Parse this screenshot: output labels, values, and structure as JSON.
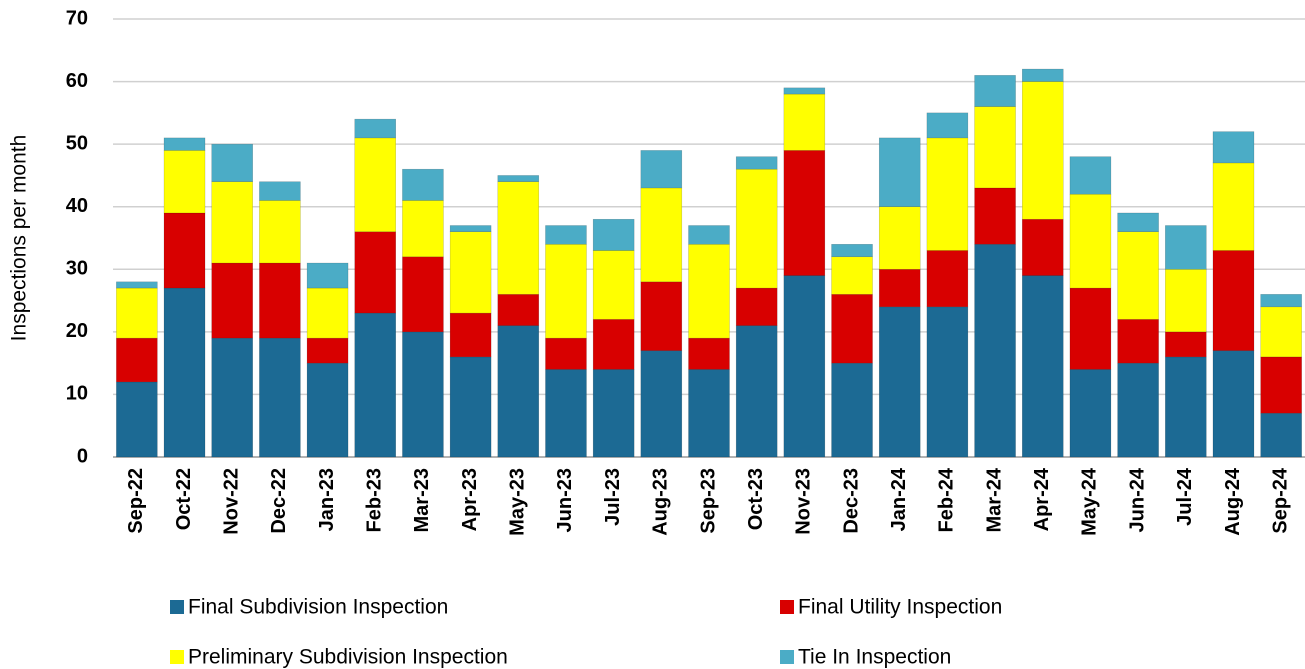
{
  "chart_data": {
    "type": "stacked_bar",
    "y_label": "Inspections per month",
    "categories": [
      "Sep-22",
      "Oct-22",
      "Nov-22",
      "Dec-22",
      "Jan-23",
      "Feb-23",
      "Mar-23",
      "Apr-23",
      "May-23",
      "Jun-23",
      "Jul-23",
      "Aug-23",
      "Sep-23",
      "Oct-23",
      "Nov-23",
      "Dec-23",
      "Jan-24",
      "Feb-24",
      "Mar-24",
      "Apr-24",
      "May-24",
      "Jun-24",
      "Jul-24",
      "Aug-24",
      "Sep-24"
    ],
    "series": [
      {
        "name": "Final Subdivision Inspection",
        "color": "#1c6a94",
        "values": [
          12,
          27,
          19,
          19,
          15,
          23,
          20,
          16,
          21,
          14,
          14,
          17,
          14,
          21,
          29,
          15,
          24,
          24,
          34,
          29,
          14,
          15,
          16,
          17,
          7
        ]
      },
      {
        "name": "Final Utility Inspection",
        "color": "#d80000",
        "values": [
          7,
          12,
          12,
          12,
          4,
          13,
          12,
          7,
          5,
          5,
          8,
          11,
          5,
          6,
          20,
          11,
          6,
          9,
          9,
          9,
          13,
          7,
          4,
          16,
          9
        ]
      },
      {
        "name": "Preliminary Subdivision Inspection",
        "color": "#ffff00",
        "values": [
          8,
          10,
          13,
          10,
          8,
          15,
          9,
          13,
          18,
          15,
          11,
          15,
          15,
          19,
          9,
          6,
          10,
          18,
          13,
          22,
          15,
          14,
          10,
          14,
          8
        ]
      },
      {
        "name": "Tie In Inspection",
        "color": "#4bacc6",
        "values": [
          1,
          2,
          6,
          3,
          4,
          3,
          5,
          1,
          1,
          3,
          5,
          6,
          3,
          2,
          1,
          2,
          11,
          4,
          5,
          2,
          6,
          3,
          7,
          5,
          2
        ]
      }
    ],
    "ylim": [
      0,
      70
    ],
    "yticks": [
      0,
      10,
      20,
      30,
      40,
      50,
      60,
      70
    ],
    "grid": true
  }
}
